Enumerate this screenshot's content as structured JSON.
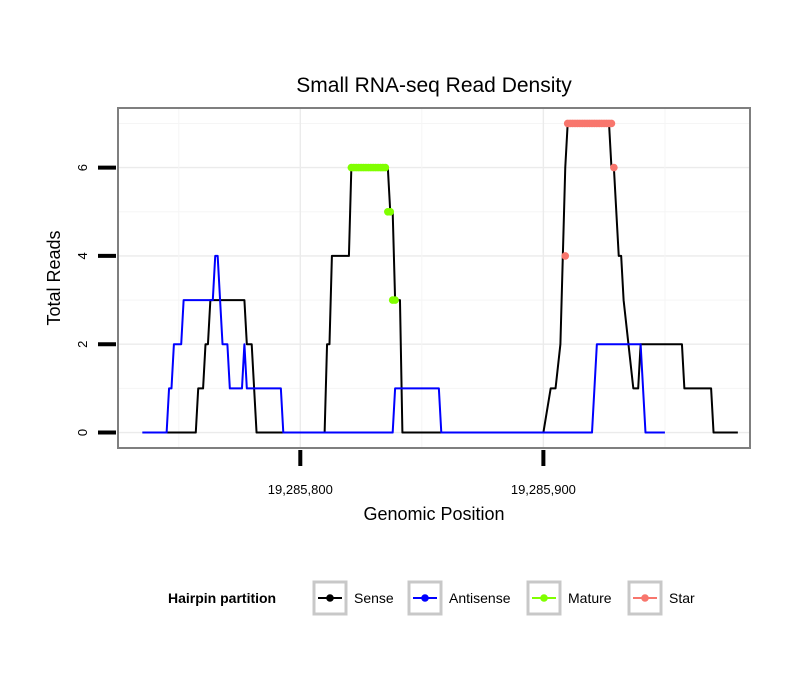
{
  "chart_data": {
    "type": "line",
    "title": "Small RNA-seq Read Density",
    "xlabel": "Genomic Position",
    "ylabel": "Total Reads",
    "xlim": [
      19285725,
      19285985
    ],
    "ylim": [
      -0.35,
      7.35
    ],
    "x_ticks": [
      19285800,
      19285900
    ],
    "x_tick_labels": [
      "19,285,800",
      "19,285,900"
    ],
    "y_ticks": [
      0,
      2,
      4,
      6
    ],
    "y_tick_labels": [
      "0",
      "2",
      "4",
      "6"
    ],
    "grid": true,
    "legend": {
      "title": "Hairpin partition",
      "position": "bottom",
      "entries": [
        {
          "key": "sense",
          "label": "Sense"
        },
        {
          "key": "antisense",
          "label": "Antisense"
        },
        {
          "key": "mature",
          "label": "Mature"
        },
        {
          "key": "star",
          "label": "Star"
        }
      ]
    },
    "colors": {
      "sense": "#000000",
      "antisense": "#0000ff",
      "mature": "#80ff00",
      "star": "#f8766d"
    },
    "series": [
      {
        "name": "Sense",
        "key": "sense",
        "style": "line",
        "x": [
          19285737,
          19285757,
          19285758,
          19285759,
          19285760,
          19285761,
          19285762,
          19285763,
          19285764,
          19285765,
          19285777,
          19285778,
          19285779,
          19285780,
          19285781,
          19285782,
          19285810,
          19285811,
          19285812,
          19285813,
          19285815,
          19285816,
          19285820,
          19285821,
          19285822,
          19285823,
          19285825,
          19285826,
          19285827,
          19285828,
          19285829,
          19285830,
          19285831,
          19285832,
          19285835,
          19285836,
          19285837,
          19285838,
          19285839,
          19285840,
          19285841,
          19285842,
          19285852,
          19285875,
          19285900,
          19285903,
          19285904,
          19285905,
          19285907,
          19285908,
          19285909,
          19285910,
          19285911,
          19285912,
          19285920,
          19285925,
          19285927,
          19285928,
          19285929,
          19285930,
          19285931,
          19285932,
          19285933,
          19285935,
          19285937,
          19285938,
          19285939,
          19285940,
          19285945,
          19285950,
          19285955,
          19285957,
          19285958,
          19285959,
          19285963,
          19285968,
          19285969,
          19285970,
          19285980
        ],
        "y": [
          0,
          0,
          1,
          1,
          1,
          2,
          2,
          3,
          3,
          3,
          3,
          2,
          2,
          2,
          1,
          0,
          0,
          2,
          2,
          4,
          4,
          4,
          4,
          6,
          6,
          6,
          6,
          6,
          6,
          6,
          6,
          6,
          6,
          6,
          6,
          6,
          5,
          5,
          3,
          3,
          3,
          0,
          0,
          0,
          0,
          1,
          1,
          1,
          2,
          4,
          6,
          7,
          7,
          7,
          7,
          7,
          7,
          6,
          6,
          5,
          4,
          4,
          3,
          2,
          1,
          1,
          1,
          2,
          2,
          2,
          2,
          2,
          1,
          1,
          1,
          1,
          1,
          0,
          0
        ]
      },
      {
        "name": "Antisense",
        "key": "antisense",
        "style": "line",
        "x": [
          19285735,
          19285745,
          19285746,
          19285747,
          19285748,
          19285749,
          19285750,
          19285751,
          19285752,
          19285754,
          19285755,
          19285764,
          19285765,
          19285766,
          19285767,
          19285768,
          19285769,
          19285770,
          19285771,
          19285772,
          19285774,
          19285775,
          19285776,
          19285777,
          19285778,
          19285779,
          19285780,
          19285782,
          19285792,
          19285793,
          19285800,
          19285837,
          19285838,
          19285839,
          19285840,
          19285841,
          19285857,
          19285858,
          19285870,
          19285920,
          19285921,
          19285922,
          19285923,
          19285940,
          19285941,
          19285942,
          19285950
        ],
        "y": [
          0,
          0,
          1,
          1,
          2,
          2,
          2,
          2,
          3,
          3,
          3,
          3,
          4,
          4,
          3,
          2,
          2,
          2,
          1,
          1,
          1,
          1,
          1,
          2,
          1,
          1,
          1,
          1,
          1,
          0,
          0,
          0,
          0,
          1,
          1,
          1,
          1,
          0,
          0,
          0,
          1,
          2,
          2,
          2,
          1,
          0,
          0
        ]
      },
      {
        "name": "Mature",
        "key": "mature",
        "style": "points",
        "x": [
          19285821,
          19285822,
          19285823,
          19285824,
          19285825,
          19285826,
          19285827,
          19285828,
          19285829,
          19285830,
          19285831,
          19285832,
          19285833,
          19285834,
          19285835,
          19285836,
          19285837,
          19285838,
          19285839
        ],
        "y": [
          6,
          6,
          6,
          6,
          6,
          6,
          6,
          6,
          6,
          6,
          6,
          6,
          6,
          6,
          6,
          5,
          5,
          3,
          3
        ]
      },
      {
        "name": "Star",
        "key": "star",
        "style": "points",
        "x": [
          19285909,
          19285910,
          19285911,
          19285912,
          19285913,
          19285914,
          19285915,
          19285916,
          19285917,
          19285918,
          19285919,
          19285920,
          19285921,
          19285922,
          19285923,
          19285924,
          19285925,
          19285926,
          19285927,
          19285928,
          19285929
        ],
        "y": [
          4,
          7,
          7,
          7,
          7,
          7,
          7,
          7,
          7,
          7,
          7,
          7,
          7,
          7,
          7,
          7,
          7,
          7,
          7,
          7,
          6
        ]
      }
    ]
  }
}
